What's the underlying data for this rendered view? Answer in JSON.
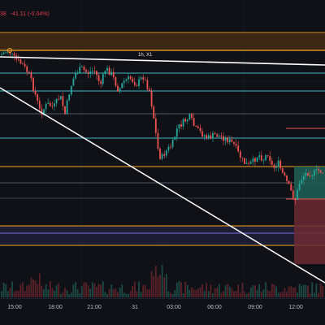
{
  "header": {
    "readout_left": "38",
    "readout_change": "-41.11 (-0.04%)"
  },
  "drawing": {
    "trendline_label": "1h, X1"
  },
  "time_axis": {
    "ticks": [
      "15:00",
      "18:00",
      "21:00",
      "31",
      "03:00",
      "06:00",
      "09:00",
      "12:00"
    ]
  },
  "colors": {
    "background": "#0f1117",
    "bull": "#26a69a",
    "bear": "#ef5350",
    "zone_orange": "#f5a623",
    "zone_cyan": "#3fb8c9",
    "trendline": "#ffffff",
    "short_stop": "#6b2a32",
    "long_target": "#1f5d52"
  }
}
